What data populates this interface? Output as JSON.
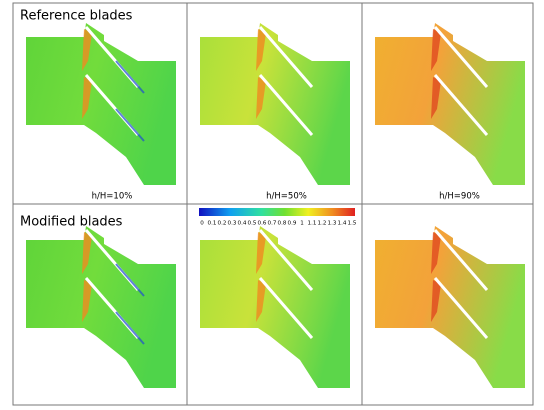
{
  "rows": [
    {
      "label": "Reference blades"
    },
    {
      "label": "Modified blades"
    }
  ],
  "captions": [
    "h/H=10%",
    "h/H=50%",
    "h/H=90%"
  ],
  "colorbar": {
    "ticks": [
      0,
      0.1,
      0.2,
      0.3,
      0.4,
      0.5,
      0.6,
      0.7,
      0.8,
      0.9,
      1,
      1.1,
      1.2,
      1.3,
      1.4,
      1.5
    ]
  }
}
